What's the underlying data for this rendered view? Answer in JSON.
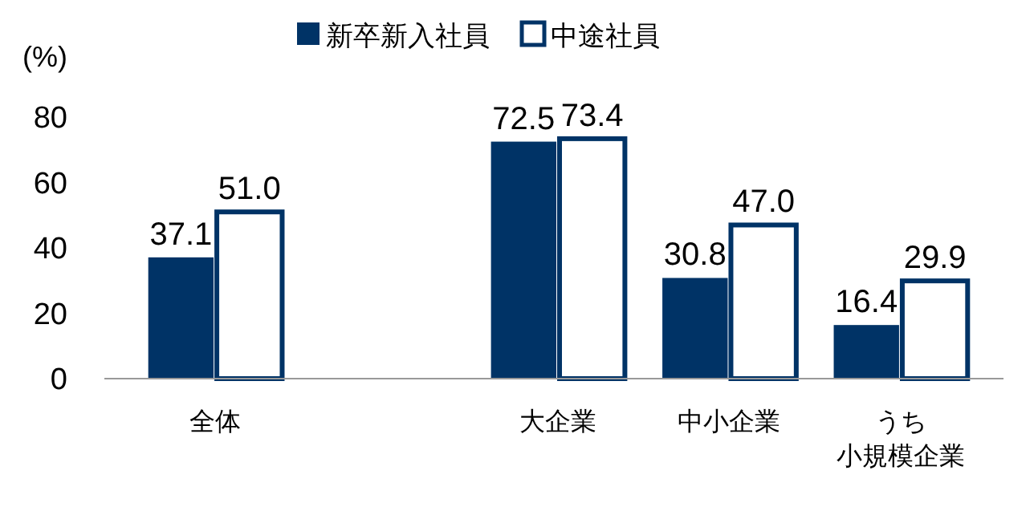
{
  "chart_data": {
    "type": "bar",
    "ylabel": "(%)",
    "categories": [
      "全体",
      null,
      "大企業",
      "中小企業",
      "うち小規模企業"
    ],
    "series": [
      {
        "name": "新卒新入社員",
        "color": "#003366",
        "values": [
          37.1,
          null,
          72.5,
          30.8,
          16.4
        ],
        "value_labels": [
          "37.1",
          null,
          "72.5",
          "30.8",
          "16.4"
        ]
      },
      {
        "name": "中途社員",
        "color": "#ffffff",
        "values": [
          51.0,
          null,
          73.4,
          47.0,
          29.9
        ],
        "value_labels": [
          "51.0",
          null,
          "73.4",
          "47.0",
          "29.9"
        ]
      }
    ],
    "ylim": [
      0,
      80
    ],
    "yticks": [
      0,
      20,
      40,
      60,
      80
    ],
    "grid": false,
    "legend": "top"
  }
}
